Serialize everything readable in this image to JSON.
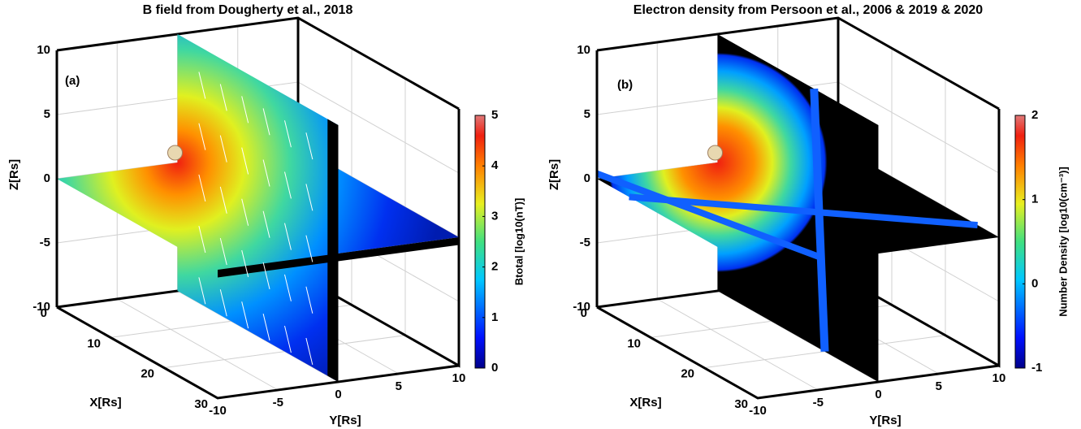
{
  "chart_data": [
    {
      "type": "surface3d",
      "title": "B field from Dougherty et al., 2018",
      "panel_label": "(a)",
      "xlabel": "X[Rs]",
      "ylabel": "Y[Rs]",
      "zlabel": "Z[Rs]",
      "xlim": [
        0,
        30
      ],
      "ylim": [
        -10,
        10
      ],
      "zlim": [
        -10,
        10
      ],
      "xticks": [
        0,
        10,
        20,
        30
      ],
      "yticks": [
        -10,
        -5,
        0,
        5,
        10
      ],
      "zticks": [
        -10,
        -5,
        0,
        5,
        10
      ],
      "grid": true,
      "style": "field",
      "colorbar": {
        "label": "Btotal [log10(nT)]",
        "lim": [
          0,
          5
        ],
        "ticks": [
          0,
          1,
          2,
          3,
          4,
          5
        ]
      }
    },
    {
      "type": "surface3d",
      "title": "Electron density from Persoon et al., 2006 & 2019 & 2020",
      "panel_label": "(b)",
      "xlabel": "X[Rs]",
      "ylabel": "Y[Rs]",
      "zlabel": "Z[Rs]",
      "xlim": [
        0,
        30
      ],
      "ylim": [
        -10,
        10
      ],
      "zlim": [
        -10,
        10
      ],
      "xticks": [
        0,
        10,
        20,
        30
      ],
      "yticks": [
        -10,
        -5,
        0,
        5,
        10
      ],
      "zticks": [
        -10,
        -5,
        0,
        5,
        10
      ],
      "grid": true,
      "style": "density",
      "colorbar": {
        "label": "Number Density [log10(cm⁻³)]",
        "lim": [
          -1,
          2
        ],
        "ticks": [
          -1,
          0,
          1,
          2
        ]
      }
    }
  ]
}
